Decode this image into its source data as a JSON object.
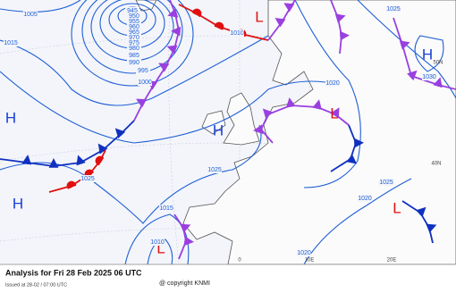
{
  "title": "Analysis for Fri 28 Feb 2025 06 UTC",
  "issued": "Issued at 28-02 / 07:00 UTC",
  "copyright": "@ copyright KNMI",
  "centers": [
    {
      "label": "H",
      "kind": "high"
    },
    {
      "label": "H",
      "kind": "high"
    },
    {
      "label": "H",
      "kind": "high"
    },
    {
      "label": "H",
      "kind": "high"
    },
    {
      "label": "L",
      "kind": "low"
    },
    {
      "label": "L",
      "kind": "low"
    },
    {
      "label": "L",
      "kind": "low"
    },
    {
      "label": "L",
      "kind": "low"
    }
  ],
  "isobar_labels": [
    "1005",
    "1015",
    "945",
    "950",
    "955",
    "960",
    "965",
    "970",
    "975",
    "980",
    "985",
    "990",
    "995",
    "1000",
    "1010",
    "1025",
    "1030",
    "1020",
    "1025",
    "1025",
    "1015",
    "1010",
    "1020",
    "1020",
    "1025"
  ],
  "grid_labels": [
    "50N",
    "40N",
    "20E",
    "10E",
    "0"
  ]
}
